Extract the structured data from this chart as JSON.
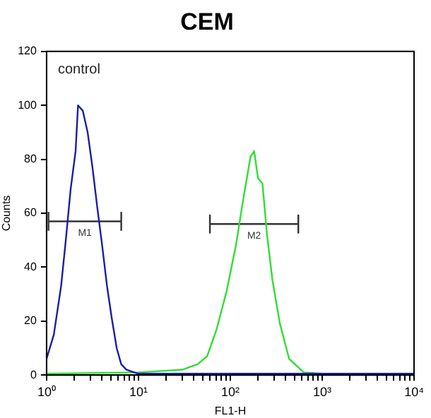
{
  "chart_data": {
    "type": "line",
    "title": "CEM",
    "xlabel": "FL1-H",
    "ylabel": "Counts",
    "log": "x",
    "xlim": [
      1,
      10000
    ],
    "xticks": [
      {
        "value": 1,
        "label": "10⁰"
      },
      {
        "value": 2,
        "label": null
      },
      {
        "value": 3,
        "label": null
      },
      {
        "value": 4,
        "label": null
      },
      {
        "value": 5,
        "label": null
      },
      {
        "value": 6,
        "label": null
      },
      {
        "value": 7,
        "label": null
      },
      {
        "value": 8,
        "label": null
      },
      {
        "value": 9,
        "label": null
      },
      {
        "value": 10,
        "label": "10¹"
      },
      {
        "value": 20,
        "label": null
      },
      {
        "value": 30,
        "label": null
      },
      {
        "value": 40,
        "label": null
      },
      {
        "value": 50,
        "label": null
      },
      {
        "value": 60,
        "label": null
      },
      {
        "value": 70,
        "label": null
      },
      {
        "value": 80,
        "label": null
      },
      {
        "value": 90,
        "label": null
      },
      {
        "value": 100,
        "label": "10²"
      },
      {
        "value": 200,
        "label": null
      },
      {
        "value": 300,
        "label": null
      },
      {
        "value": 400,
        "label": null
      },
      {
        "value": 500,
        "label": null
      },
      {
        "value": 600,
        "label": null
      },
      {
        "value": 700,
        "label": null
      },
      {
        "value": 800,
        "label": null
      },
      {
        "value": 900,
        "label": null
      },
      {
        "value": 1000,
        "label": "10³"
      },
      {
        "value": 2000,
        "label": null
      },
      {
        "value": 3000,
        "label": null
      },
      {
        "value": 4000,
        "label": null
      },
      {
        "value": 5000,
        "label": null
      },
      {
        "value": 6000,
        "label": null
      },
      {
        "value": 7000,
        "label": null
      },
      {
        "value": 8000,
        "label": null
      },
      {
        "value": 9000,
        "label": null
      },
      {
        "value": 10000,
        "label": "10⁴"
      }
    ],
    "ylim": [
      0,
      120
    ],
    "yticks": [
      0,
      20,
      40,
      60,
      80,
      100,
      120
    ],
    "grid": false,
    "legend": false,
    "marker": "none",
    "line_style": "solid",
    "series": [
      {
        "color": "#1c1ca8",
        "x": [
          1,
          1.2,
          1.44,
          1.62,
          1.83,
          2.07,
          2.2,
          2.48,
          2.8,
          3.16,
          3.57,
          4.03,
          4.55,
          5.13,
          5.8,
          6.5,
          7.4,
          10,
          30,
          100,
          1000,
          10000
        ],
        "values": [
          6,
          15,
          33,
          50,
          69,
          83,
          100,
          98,
          90,
          77,
          62,
          48,
          33,
          21,
          10,
          4,
          2,
          0.5,
          0.5,
          0.5,
          0.5,
          0.5
        ]
      },
      {
        "color": "#33dd33",
        "x": [
          1,
          10,
          30,
          44,
          56,
          71,
          91,
          115,
          138,
          166,
          182,
          200,
          224,
          251,
          288,
          347,
          437,
          631,
          1000
        ],
        "values": [
          0.5,
          1,
          2,
          4,
          7,
          17,
          31,
          48,
          65,
          81,
          83,
          73,
          71,
          52,
          35,
          19,
          6,
          1,
          0.5
        ]
      },
      {
        "name": "M1",
        "color": "#333333",
        "x": [
          1.05,
          6.5
        ],
        "values": [
          57,
          57
        ],
        "errors": [
          3.5,
          3.5
        ]
      },
      {
        "name": "M2",
        "color": "#333333",
        "x": [
          60,
          550
        ],
        "values": [
          56,
          56
        ],
        "errors": [
          3.5,
          3.5
        ]
      }
    ],
    "annotations": [
      "control"
    ]
  }
}
